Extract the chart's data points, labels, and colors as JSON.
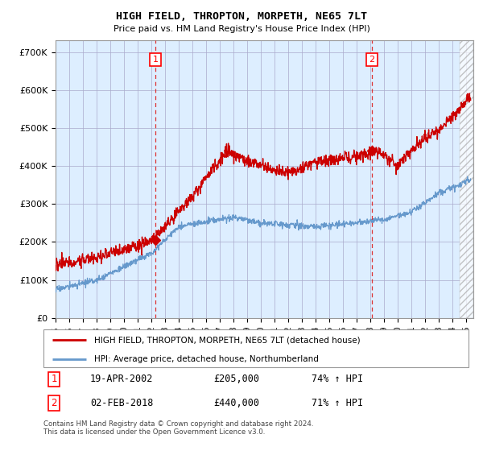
{
  "title": "HIGH FIELD, THROPTON, MORPETH, NE65 7LT",
  "subtitle": "Price paid vs. HM Land Registry's House Price Index (HPI)",
  "ylabel_ticks": [
    "£0",
    "£100K",
    "£200K",
    "£300K",
    "£400K",
    "£500K",
    "£600K",
    "£700K"
  ],
  "ytick_values": [
    0,
    100000,
    200000,
    300000,
    400000,
    500000,
    600000,
    700000
  ],
  "ylim": [
    0,
    730000
  ],
  "xlim_start": 1995.0,
  "xlim_end": 2025.5,
  "marker1_x": 2002.3,
  "marker1_y": 205000,
  "marker2_x": 2018.1,
  "marker2_y": 440000,
  "marker1_label": "1",
  "marker2_label": "2",
  "legend_line1": "HIGH FIELD, THROPTON, MORPETH, NE65 7LT (detached house)",
  "legend_line2": "HPI: Average price, detached house, Northumberland",
  "table_row1_num": "1",
  "table_row1_date": "19-APR-2002",
  "table_row1_price": "£205,000",
  "table_row1_hpi": "74% ↑ HPI",
  "table_row2_num": "2",
  "table_row2_date": "02-FEB-2018",
  "table_row2_price": "£440,000",
  "table_row2_hpi": "71% ↑ HPI",
  "footer": "Contains HM Land Registry data © Crown copyright and database right 2024.\nThis data is licensed under the Open Government Licence v3.0.",
  "red_color": "#cc0000",
  "blue_color": "#6699cc",
  "bg_color": "#ddeeff",
  "grid_color": "#aaaacc",
  "dashed_line_color": "#dd3333",
  "hatch_boundary": 2024.5
}
